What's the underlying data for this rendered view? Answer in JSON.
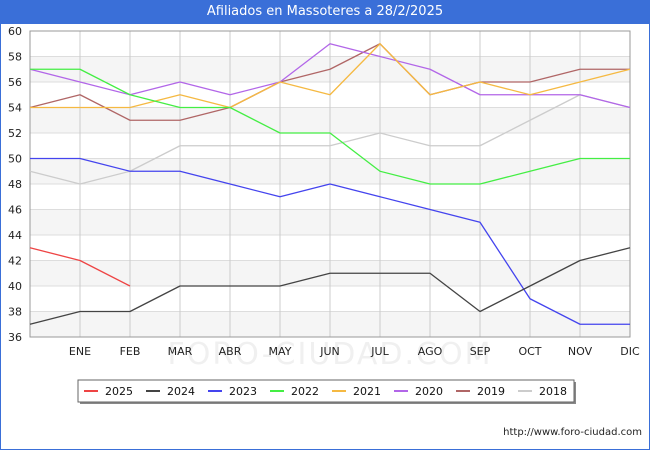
{
  "header": {
    "title": "Afiliados en Massoteres a 28/2/2025"
  },
  "footer": {
    "credit": "http://www.foro-ciudad.com"
  },
  "watermark": "FORO-CIUDAD.COM",
  "chart_data": {
    "type": "line",
    "title": "Afiliados en Massoteres a 28/2/2025",
    "xlabel": "",
    "ylabel": "",
    "categories": [
      "",
      "ENE",
      "FEB",
      "MAR",
      "ABR",
      "MAY",
      "JUN",
      "JUL",
      "AGO",
      "SEP",
      "OCT",
      "NOV",
      "DIC"
    ],
    "ylim": [
      36,
      60
    ],
    "yticks": [
      36,
      38,
      40,
      42,
      44,
      46,
      48,
      50,
      52,
      54,
      56,
      58,
      60
    ],
    "grid": true,
    "legend_position": "bottom",
    "series": [
      {
        "name": "2025",
        "color": "#ee4444",
        "values": [
          43,
          42,
          40,
          null,
          null,
          null,
          null,
          null,
          null,
          null,
          null,
          null,
          null
        ]
      },
      {
        "name": "2024",
        "color": "#444444",
        "values": [
          37,
          38,
          38,
          40,
          40,
          40,
          41,
          41,
          41,
          38,
          40,
          42,
          43
        ]
      },
      {
        "name": "2023",
        "color": "#4444ee",
        "values": [
          50,
          50,
          49,
          49,
          48,
          47,
          48,
          47,
          46,
          45,
          39,
          37,
          37
        ]
      },
      {
        "name": "2022",
        "color": "#44ee44",
        "values": [
          57,
          57,
          55,
          54,
          54,
          52,
          52,
          49,
          48,
          48,
          49,
          50,
          50
        ]
      },
      {
        "name": "2021",
        "color": "#f5b942",
        "values": [
          54,
          54,
          54,
          55,
          54,
          56,
          55,
          59,
          55,
          56,
          55,
          56,
          57
        ]
      },
      {
        "name": "2020",
        "color": "#b266e8",
        "values": [
          57,
          56,
          55,
          56,
          55,
          56,
          59,
          58,
          57,
          55,
          55,
          55,
          54
        ]
      },
      {
        "name": "2019",
        "color": "#b06666",
        "values": [
          54,
          55,
          53,
          53,
          54,
          56,
          57,
          59,
          55,
          56,
          56,
          57,
          57
        ]
      },
      {
        "name": "2018",
        "color": "#cccccc",
        "values": [
          49,
          48,
          49,
          51,
          51,
          51,
          51,
          52,
          51,
          51,
          53,
          55,
          54
        ]
      }
    ]
  }
}
